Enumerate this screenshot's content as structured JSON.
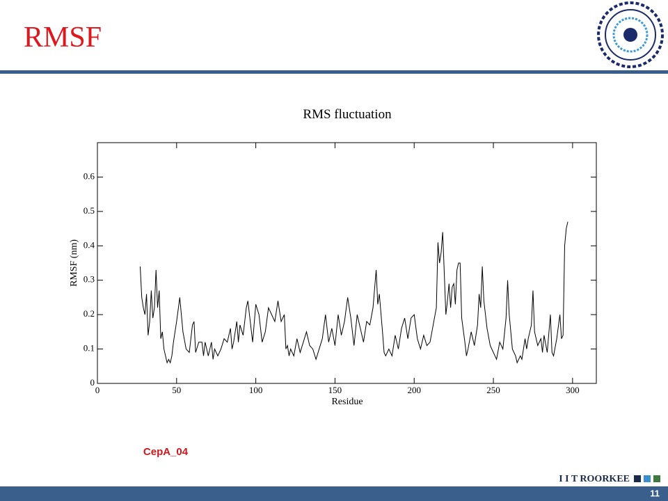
{
  "title": "RMSF",
  "caption": "CepA_04",
  "footer": {
    "brand": "I I T ROORKEE",
    "page": "11"
  },
  "chart_data": {
    "type": "line",
    "title": "RMS fluctuation",
    "x_label": "Residue",
    "y_label": "RMSF (nm)",
    "xlim": [
      0,
      315
    ],
    "ylim": [
      0,
      0.7
    ],
    "xticks": [
      0,
      50,
      100,
      150,
      200,
      250,
      300
    ],
    "yticks": [
      0,
      0.1,
      0.2,
      0.3,
      0.4,
      0.5,
      0.6
    ],
    "color": "#000000",
    "x": [
      27,
      28,
      29,
      30,
      31,
      32,
      33,
      34,
      35,
      36,
      37,
      38,
      39,
      40,
      41,
      42,
      43,
      44,
      45,
      46,
      47,
      48,
      50,
      52,
      54,
      56,
      58,
      60,
      61,
      62,
      64,
      66,
      67,
      68,
      70,
      72,
      73,
      74,
      76,
      78,
      80,
      82,
      84,
      85,
      86,
      88,
      89,
      90,
      92,
      94,
      95,
      96,
      98,
      100,
      102,
      104,
      106,
      108,
      110,
      112,
      114,
      116,
      118,
      119,
      120,
      121,
      122,
      124,
      126,
      128,
      130,
      132,
      134,
      136,
      138,
      140,
      142,
      144,
      146,
      148,
      150,
      152,
      154,
      156,
      158,
      160,
      162,
      164,
      166,
      168,
      170,
      172,
      174,
      176,
      177,
      178,
      180,
      181,
      182,
      184,
      186,
      188,
      190,
      192,
      194,
      196,
      198,
      200,
      202,
      204,
      206,
      208,
      210,
      212,
      214,
      215,
      216,
      217,
      218,
      219,
      220,
      221,
      222,
      223,
      224,
      225,
      226,
      227,
      228,
      229,
      230,
      232,
      233,
      234,
      236,
      238,
      240,
      241,
      242,
      243,
      244,
      246,
      248,
      250,
      252,
      254,
      256,
      258,
      259,
      260,
      262,
      264,
      265,
      267,
      268,
      270,
      271,
      272,
      274,
      275,
      276,
      278,
      280,
      281,
      282,
      284,
      286,
      287,
      288,
      290,
      292,
      293,
      294,
      295,
      296,
      297
    ],
    "values": [
      0.34,
      0.25,
      0.22,
      0.2,
      0.26,
      0.14,
      0.18,
      0.27,
      0.19,
      0.22,
      0.33,
      0.22,
      0.27,
      0.13,
      0.15,
      0.1,
      0.08,
      0.06,
      0.07,
      0.06,
      0.08,
      0.12,
      0.18,
      0.25,
      0.15,
      0.1,
      0.09,
      0.17,
      0.18,
      0.09,
      0.12,
      0.12,
      0.08,
      0.12,
      0.08,
      0.12,
      0.07,
      0.1,
      0.08,
      0.1,
      0.13,
      0.12,
      0.16,
      0.1,
      0.12,
      0.18,
      0.12,
      0.17,
      0.14,
      0.22,
      0.24,
      0.2,
      0.12,
      0.23,
      0.2,
      0.12,
      0.15,
      0.22,
      0.2,
      0.18,
      0.24,
      0.18,
      0.2,
      0.1,
      0.11,
      0.08,
      0.1,
      0.08,
      0.13,
      0.09,
      0.12,
      0.15,
      0.11,
      0.1,
      0.07,
      0.1,
      0.13,
      0.2,
      0.12,
      0.16,
      0.11,
      0.2,
      0.14,
      0.18,
      0.25,
      0.19,
      0.11,
      0.2,
      0.16,
      0.12,
      0.18,
      0.17,
      0.22,
      0.33,
      0.23,
      0.26,
      0.15,
      0.09,
      0.08,
      0.1,
      0.08,
      0.14,
      0.1,
      0.16,
      0.19,
      0.13,
      0.19,
      0.2,
      0.13,
      0.1,
      0.14,
      0.11,
      0.12,
      0.17,
      0.22,
      0.41,
      0.35,
      0.38,
      0.44,
      0.32,
      0.2,
      0.24,
      0.29,
      0.22,
      0.28,
      0.29,
      0.23,
      0.33,
      0.35,
      0.35,
      0.19,
      0.12,
      0.08,
      0.1,
      0.15,
      0.11,
      0.17,
      0.26,
      0.22,
      0.34,
      0.24,
      0.16,
      0.11,
      0.09,
      0.07,
      0.12,
      0.1,
      0.19,
      0.3,
      0.2,
      0.1,
      0.08,
      0.06,
      0.08,
      0.07,
      0.13,
      0.1,
      0.13,
      0.17,
      0.27,
      0.15,
      0.11,
      0.13,
      0.09,
      0.14,
      0.09,
      0.2,
      0.09,
      0.08,
      0.13,
      0.2,
      0.13,
      0.14,
      0.4,
      0.45,
      0.47
    ]
  }
}
